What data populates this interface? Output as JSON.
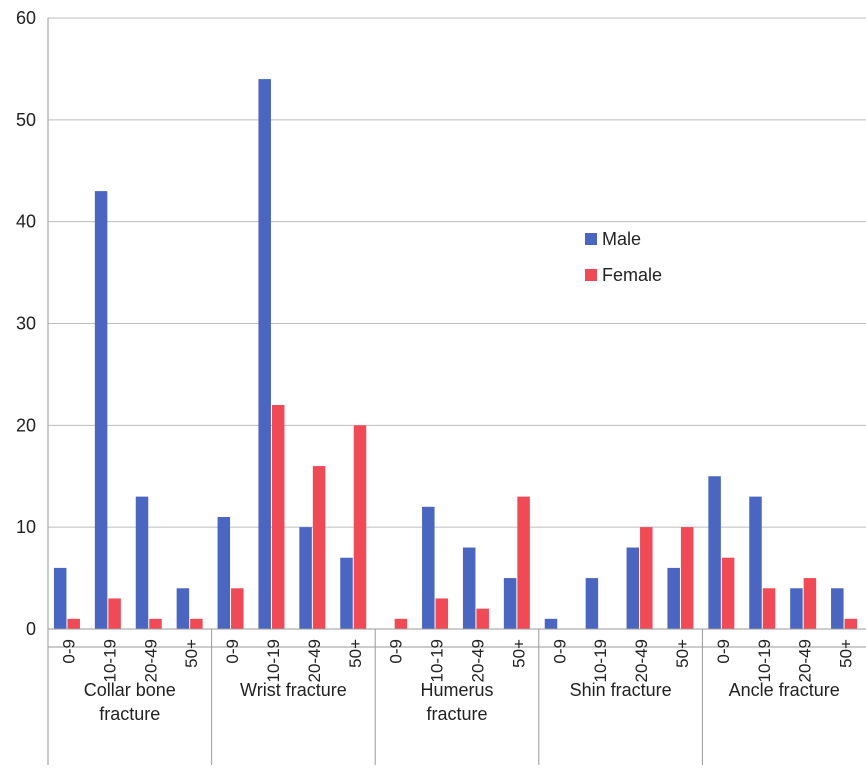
{
  "chart_data": {
    "type": "bar",
    "title": "",
    "xlabel": "",
    "ylabel": "",
    "ylim": [
      0,
      60
    ],
    "yticks": [
      0,
      10,
      20,
      30,
      40,
      50,
      60
    ],
    "grid": true,
    "legend_position": "center-right",
    "colors": {
      "male": "#4a66c1",
      "female": "#ef4a55"
    },
    "groups": [
      {
        "label": "Collar bone fracture",
        "label_lines": [
          "Collar bone",
          "fracture"
        ],
        "categories": [
          "0-9",
          "10-19",
          "20-49",
          "50+"
        ]
      },
      {
        "label": "Wrist fracture",
        "label_lines": [
          "Wrist fracture"
        ],
        "categories": [
          "0-9",
          "10-19",
          "20-49",
          "50+"
        ]
      },
      {
        "label": "Humerus fracture",
        "label_lines": [
          "Humerus",
          "fracture"
        ],
        "categories": [
          "0-9",
          "10-19",
          "20-49",
          "50+"
        ]
      },
      {
        "label": "Shin fracture",
        "label_lines": [
          "Shin fracture"
        ],
        "categories": [
          "0-9",
          "10-19",
          "20-49",
          "50+"
        ]
      },
      {
        "label": "Ancle fracture",
        "label_lines": [
          "Ancle fracture"
        ],
        "categories": [
          "0-9",
          "10-19",
          "20-49",
          "50+"
        ]
      }
    ],
    "series": [
      {
        "name": "Male",
        "values": [
          6,
          43,
          13,
          4,
          11,
          54,
          10,
          7,
          0,
          12,
          8,
          5,
          1,
          5,
          8,
          6,
          15,
          13,
          4,
          4
        ]
      },
      {
        "name": "Female",
        "values": [
          1,
          3,
          1,
          1,
          4,
          22,
          16,
          20,
          1,
          3,
          2,
          13,
          0,
          0,
          10,
          10,
          7,
          4,
          5,
          1
        ]
      }
    ]
  }
}
